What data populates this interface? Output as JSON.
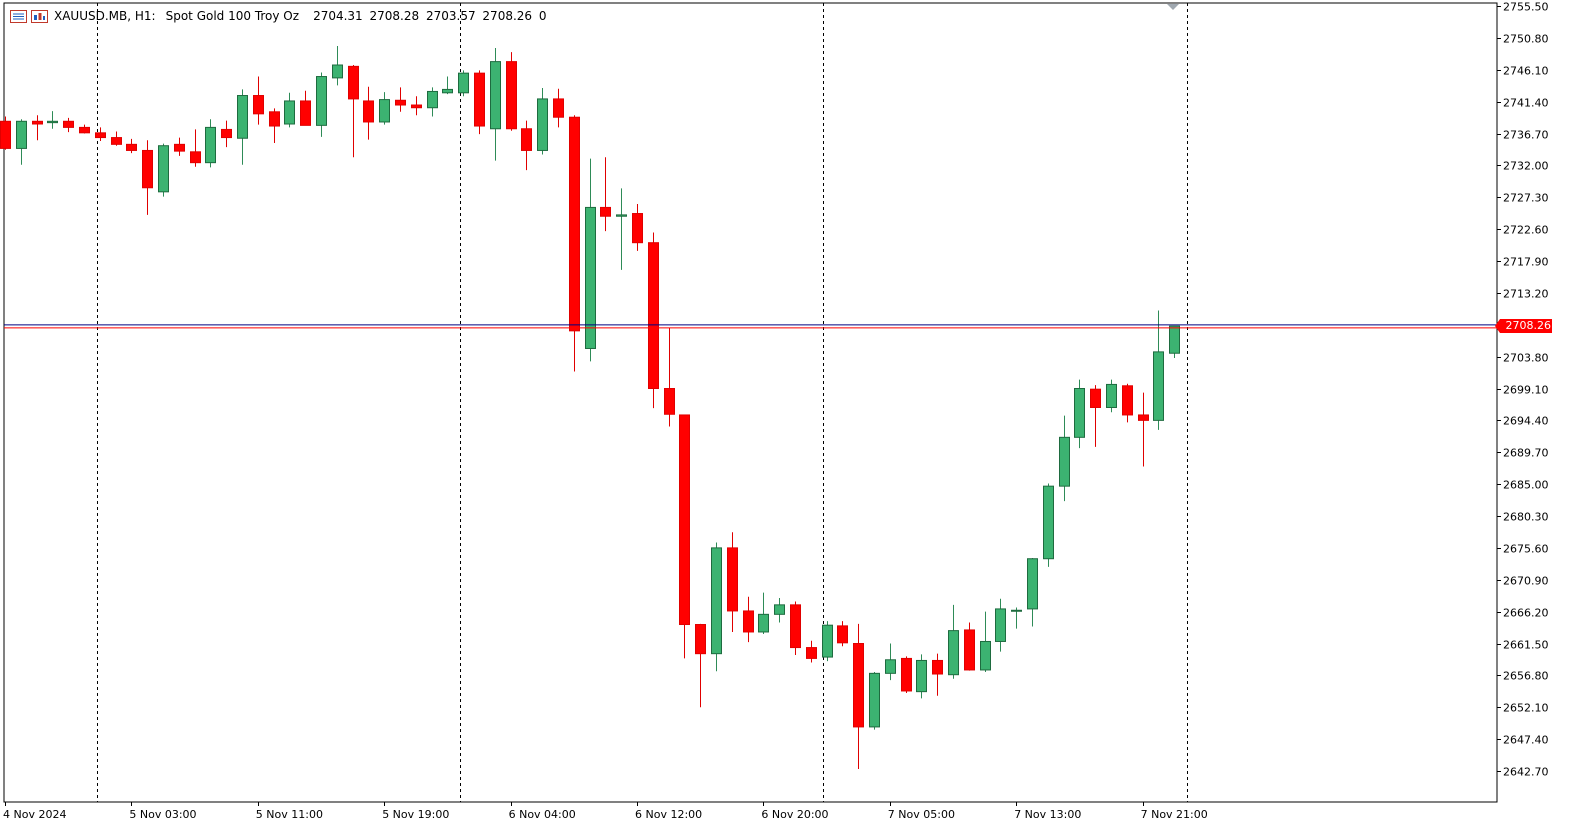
{
  "header": {
    "symbol": "XAUUSD.MB, H1:",
    "description": "Spot Gold 100 Troy Oz",
    "open": "2704.31",
    "high": "2708.28",
    "low": "2703.57",
    "close": "2708.26",
    "volume": "0"
  },
  "colors": {
    "bull_fill": "#3cb371",
    "bear_fill": "#ff0000",
    "wick_bull": "#2e8b57",
    "wick_bear": "#e00000",
    "bid_line": "#000080",
    "ask_line": "#ff0000",
    "price_tag_bg": "#ff0000",
    "grid_sep": "#000000",
    "background": "#ffffff"
  },
  "icons": [
    "grid-menu-icon",
    "chart-window-icon"
  ],
  "chart_data": {
    "type": "candlestick",
    "timeframe": "H1",
    "current_price": 2708.26,
    "current_price_label": "2708.26",
    "ylim": [
      2639.0,
      2755.5
    ],
    "y_ticks": [
      "2755.50",
      "2750.80",
      "2746.10",
      "2741.40",
      "2736.70",
      "2732.00",
      "2727.30",
      "2722.60",
      "2717.90",
      "2713.20",
      "2703.80",
      "2699.10",
      "2694.40",
      "2689.70",
      "2685.00",
      "2680.30",
      "2675.60",
      "2670.90",
      "2666.20",
      "2661.50",
      "2656.80",
      "2652.10",
      "2647.40",
      "2642.70"
    ],
    "x_ticks": [
      {
        "label": "4 Nov 2024",
        "index": 0
      },
      {
        "label": "5 Nov 03:00",
        "index": 8
      },
      {
        "label": "5 Nov 11:00",
        "index": 16
      },
      {
        "label": "5 Nov 19:00",
        "index": 24
      },
      {
        "label": "6 Nov 04:00",
        "index": 32
      },
      {
        "label": "6 Nov 12:00",
        "index": 40
      },
      {
        "label": "6 Nov 20:00",
        "index": 48
      },
      {
        "label": "7 Nov 05:00",
        "index": 56
      },
      {
        "label": "7 Nov 13:00",
        "index": 64
      },
      {
        "label": "7 Nov 21:00",
        "index": 72
      }
    ],
    "day_separators": [
      5.8,
      28.8,
      51.8,
      74.8
    ],
    "candles": [
      {
        "o": 2738.5,
        "h": 2739.2,
        "l": 2734.3,
        "c": 2734.5
      },
      {
        "o": 2734.5,
        "h": 2738.8,
        "l": 2732.1,
        "c": 2738.5
      },
      {
        "o": 2738.5,
        "h": 2739.4,
        "l": 2735.7,
        "c": 2738.1
      },
      {
        "o": 2738.3,
        "h": 2740.0,
        "l": 2737.4,
        "c": 2738.5
      },
      {
        "o": 2738.5,
        "h": 2739.0,
        "l": 2736.9,
        "c": 2737.6
      },
      {
        "o": 2737.6,
        "h": 2738.0,
        "l": 2736.7,
        "c": 2736.8
      },
      {
        "o": 2736.8,
        "h": 2737.6,
        "l": 2735.6,
        "c": 2736.1
      },
      {
        "o": 2736.1,
        "h": 2737.0,
        "l": 2734.9,
        "c": 2735.1
      },
      {
        "o": 2735.1,
        "h": 2735.9,
        "l": 2733.8,
        "c": 2734.2
      },
      {
        "o": 2734.2,
        "h": 2735.7,
        "l": 2724.7,
        "c": 2728.7
      },
      {
        "o": 2728.1,
        "h": 2735.2,
        "l": 2727.4,
        "c": 2734.9
      },
      {
        "o": 2735.1,
        "h": 2736.1,
        "l": 2733.4,
        "c": 2734.1
      },
      {
        "o": 2734.0,
        "h": 2737.3,
        "l": 2731.8,
        "c": 2732.4
      },
      {
        "o": 2732.4,
        "h": 2738.8,
        "l": 2731.7,
        "c": 2737.6
      },
      {
        "o": 2737.3,
        "h": 2738.6,
        "l": 2734.7,
        "c": 2736.1
      },
      {
        "o": 2736.0,
        "h": 2743.2,
        "l": 2732.1,
        "c": 2742.3
      },
      {
        "o": 2742.3,
        "h": 2745.1,
        "l": 2738.0,
        "c": 2739.6
      },
      {
        "o": 2739.9,
        "h": 2740.4,
        "l": 2735.3,
        "c": 2737.8
      },
      {
        "o": 2738.1,
        "h": 2742.7,
        "l": 2737.6,
        "c": 2741.5
      },
      {
        "o": 2741.5,
        "h": 2743.0,
        "l": 2737.9,
        "c": 2737.9
      },
      {
        "o": 2737.9,
        "h": 2745.7,
        "l": 2736.2,
        "c": 2745.1
      },
      {
        "o": 2744.9,
        "h": 2749.6,
        "l": 2743.8,
        "c": 2746.8
      },
      {
        "o": 2746.6,
        "h": 2746.8,
        "l": 2733.2,
        "c": 2741.8
      },
      {
        "o": 2741.5,
        "h": 2743.6,
        "l": 2735.8,
        "c": 2738.4
      },
      {
        "o": 2738.4,
        "h": 2742.8,
        "l": 2738.0,
        "c": 2741.7
      },
      {
        "o": 2741.6,
        "h": 2743.5,
        "l": 2739.9,
        "c": 2740.9
      },
      {
        "o": 2740.9,
        "h": 2742.2,
        "l": 2739.4,
        "c": 2740.5
      },
      {
        "o": 2740.5,
        "h": 2743.5,
        "l": 2739.2,
        "c": 2742.9
      },
      {
        "o": 2742.7,
        "h": 2745.1,
        "l": 2742.5,
        "c": 2743.2
      },
      {
        "o": 2742.7,
        "h": 2746.0,
        "l": 2742.2,
        "c": 2745.6
      },
      {
        "o": 2745.6,
        "h": 2746.0,
        "l": 2736.6,
        "c": 2737.8
      },
      {
        "o": 2737.4,
        "h": 2749.3,
        "l": 2732.7,
        "c": 2747.3
      },
      {
        "o": 2747.3,
        "h": 2748.7,
        "l": 2737.1,
        "c": 2737.4
      },
      {
        "o": 2737.4,
        "h": 2738.6,
        "l": 2731.3,
        "c": 2734.2
      },
      {
        "o": 2734.2,
        "h": 2743.4,
        "l": 2733.6,
        "c": 2741.8
      },
      {
        "o": 2741.8,
        "h": 2743.3,
        "l": 2737.6,
        "c": 2739.1
      },
      {
        "o": 2739.1,
        "h": 2739.4,
        "l": 2701.6,
        "c": 2707.6
      },
      {
        "o": 2705.0,
        "h": 2733.0,
        "l": 2703.1,
        "c": 2725.8
      },
      {
        "o": 2725.8,
        "h": 2733.2,
        "l": 2722.3,
        "c": 2724.5
      },
      {
        "o": 2724.5,
        "h": 2728.6,
        "l": 2716.6,
        "c": 2724.7
      },
      {
        "o": 2724.9,
        "h": 2726.3,
        "l": 2719.4,
        "c": 2720.6
      },
      {
        "o": 2720.6,
        "h": 2722.1,
        "l": 2696.2,
        "c": 2699.1
      },
      {
        "o": 2699.1,
        "h": 2708.1,
        "l": 2693.5,
        "c": 2695.3
      },
      {
        "o": 2695.2,
        "h": 2695.2,
        "l": 2659.3,
        "c": 2664.3
      },
      {
        "o": 2664.3,
        "h": 2664.4,
        "l": 2652.1,
        "c": 2660.0
      },
      {
        "o": 2660.0,
        "h": 2676.4,
        "l": 2657.4,
        "c": 2675.6
      },
      {
        "o": 2675.6,
        "h": 2677.9,
        "l": 2663.2,
        "c": 2666.3
      },
      {
        "o": 2666.3,
        "h": 2668.4,
        "l": 2661.7,
        "c": 2663.2
      },
      {
        "o": 2663.2,
        "h": 2669.0,
        "l": 2662.9,
        "c": 2665.8
      },
      {
        "o": 2665.8,
        "h": 2668.2,
        "l": 2664.6,
        "c": 2667.2
      },
      {
        "o": 2667.2,
        "h": 2667.7,
        "l": 2659.8,
        "c": 2660.9
      },
      {
        "o": 2660.9,
        "h": 2661.9,
        "l": 2658.7,
        "c": 2659.3
      },
      {
        "o": 2659.5,
        "h": 2664.8,
        "l": 2658.9,
        "c": 2664.2
      },
      {
        "o": 2664.1,
        "h": 2664.8,
        "l": 2661.1,
        "c": 2661.6
      },
      {
        "o": 2661.5,
        "h": 2664.4,
        "l": 2643.0,
        "c": 2649.2
      },
      {
        "o": 2649.2,
        "h": 2657.3,
        "l": 2648.8,
        "c": 2657.1
      },
      {
        "o": 2657.1,
        "h": 2661.5,
        "l": 2656.1,
        "c": 2659.1
      },
      {
        "o": 2659.3,
        "h": 2659.6,
        "l": 2654.2,
        "c": 2654.5
      },
      {
        "o": 2654.4,
        "h": 2659.9,
        "l": 2653.4,
        "c": 2659.0
      },
      {
        "o": 2659.0,
        "h": 2660.0,
        "l": 2653.8,
        "c": 2657.0
      },
      {
        "o": 2656.9,
        "h": 2667.2,
        "l": 2656.3,
        "c": 2663.4
      },
      {
        "o": 2663.5,
        "h": 2664.6,
        "l": 2657.5,
        "c": 2657.6
      },
      {
        "o": 2657.6,
        "h": 2666.2,
        "l": 2657.3,
        "c": 2661.8
      },
      {
        "o": 2661.8,
        "h": 2668.1,
        "l": 2660.3,
        "c": 2666.6
      },
      {
        "o": 2666.4,
        "h": 2666.8,
        "l": 2663.7,
        "c": 2666.4
      },
      {
        "o": 2666.6,
        "h": 2674.1,
        "l": 2664.0,
        "c": 2674.0
      },
      {
        "o": 2674.0,
        "h": 2685.1,
        "l": 2672.8,
        "c": 2684.7
      },
      {
        "o": 2684.7,
        "h": 2695.1,
        "l": 2682.5,
        "c": 2691.9
      },
      {
        "o": 2691.9,
        "h": 2700.4,
        "l": 2690.3,
        "c": 2699.1
      },
      {
        "o": 2699.0,
        "h": 2699.6,
        "l": 2690.5,
        "c": 2696.3
      },
      {
        "o": 2696.3,
        "h": 2700.4,
        "l": 2695.6,
        "c": 2699.7
      },
      {
        "o": 2699.5,
        "h": 2699.8,
        "l": 2694.1,
        "c": 2695.2
      },
      {
        "o": 2695.2,
        "h": 2698.5,
        "l": 2687.6,
        "c": 2694.4
      },
      {
        "o": 2694.4,
        "h": 2710.6,
        "l": 2693.0,
        "c": 2704.5
      },
      {
        "o": 2704.3,
        "h": 2708.3,
        "l": 2703.6,
        "c": 2708.3
      }
    ]
  }
}
